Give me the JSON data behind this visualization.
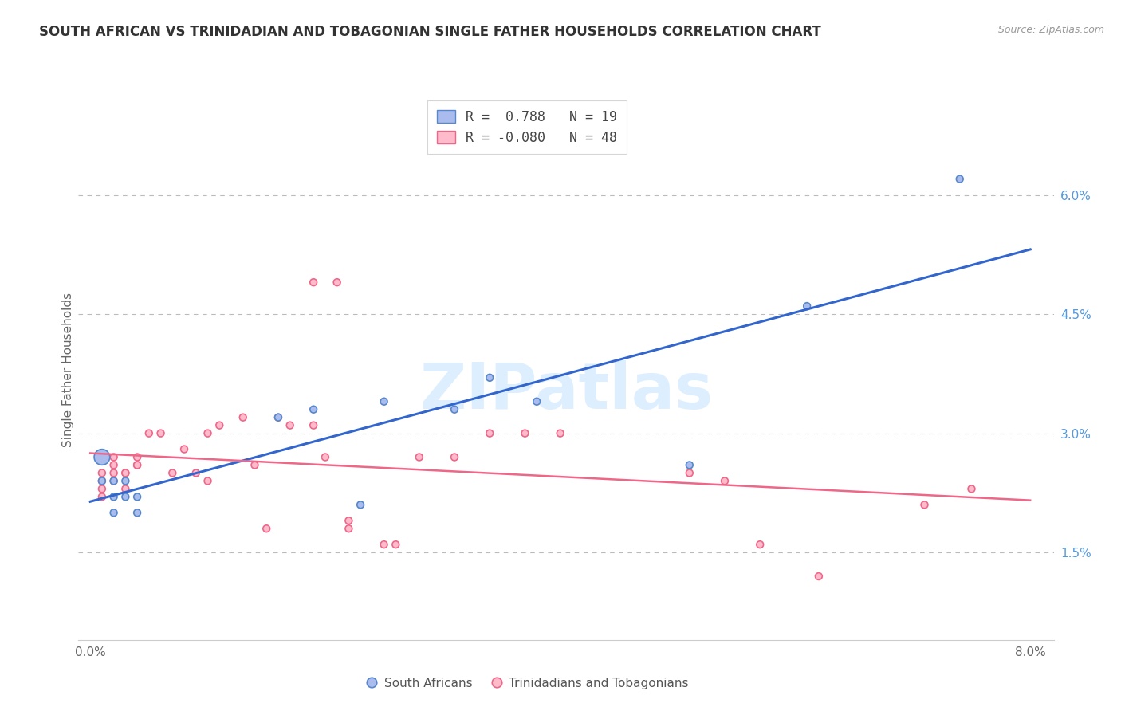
{
  "title": "SOUTH AFRICAN VS TRINIDADIAN AND TOBAGONIAN SINGLE FATHER HOUSEHOLDS CORRELATION CHART",
  "source": "Source: ZipAtlas.com",
  "ylabel": "Single Father Households",
  "x_ticks": [
    0.0,
    0.01,
    0.02,
    0.03,
    0.04,
    0.05,
    0.06,
    0.07,
    0.08
  ],
  "x_tick_labels": [
    "0.0%",
    "",
    "",
    "",
    "",
    "",
    "",
    "",
    "8.0%"
  ],
  "y_ticks": [
    0.015,
    0.03,
    0.045,
    0.06
  ],
  "y_tick_labels": [
    "1.5%",
    "3.0%",
    "4.5%",
    "6.0%"
  ],
  "xlim": [
    -0.001,
    0.082
  ],
  "ylim": [
    0.004,
    0.072
  ],
  "legend_blue_label": "R =  0.788   N = 19",
  "legend_pink_label": "R = -0.080   N = 48",
  "south_african_x": [
    0.001,
    0.001,
    0.002,
    0.002,
    0.002,
    0.003,
    0.003,
    0.004,
    0.004,
    0.016,
    0.019,
    0.023,
    0.025,
    0.031,
    0.034,
    0.038,
    0.051,
    0.061,
    0.074
  ],
  "south_african_y": [
    0.027,
    0.024,
    0.024,
    0.022,
    0.02,
    0.022,
    0.024,
    0.02,
    0.022,
    0.032,
    0.033,
    0.021,
    0.034,
    0.033,
    0.037,
    0.034,
    0.026,
    0.046,
    0.062
  ],
  "south_african_sizes": [
    200,
    40,
    40,
    40,
    40,
    40,
    40,
    40,
    40,
    40,
    40,
    40,
    40,
    40,
    40,
    40,
    40,
    40,
    40
  ],
  "trinidadian_x": [
    0.001,
    0.001,
    0.001,
    0.001,
    0.001,
    0.001,
    0.002,
    0.002,
    0.002,
    0.002,
    0.003,
    0.003,
    0.003,
    0.004,
    0.004,
    0.004,
    0.005,
    0.006,
    0.007,
    0.008,
    0.009,
    0.01,
    0.01,
    0.011,
    0.013,
    0.014,
    0.015,
    0.016,
    0.017,
    0.019,
    0.02,
    0.022,
    0.022,
    0.025,
    0.026,
    0.028,
    0.031,
    0.034,
    0.037,
    0.04,
    0.051,
    0.054,
    0.057,
    0.062,
    0.071,
    0.075,
    0.019,
    0.021
  ],
  "trinidadian_y": [
    0.027,
    0.027,
    0.025,
    0.024,
    0.023,
    0.022,
    0.027,
    0.026,
    0.025,
    0.024,
    0.025,
    0.025,
    0.023,
    0.027,
    0.026,
    0.026,
    0.03,
    0.03,
    0.025,
    0.028,
    0.025,
    0.03,
    0.024,
    0.031,
    0.032,
    0.026,
    0.018,
    0.032,
    0.031,
    0.031,
    0.027,
    0.019,
    0.018,
    0.016,
    0.016,
    0.027,
    0.027,
    0.03,
    0.03,
    0.03,
    0.025,
    0.024,
    0.016,
    0.012,
    0.021,
    0.023,
    0.049,
    0.049
  ],
  "trinidadian_sizes": [
    40,
    40,
    40,
    40,
    40,
    40,
    40,
    40,
    40,
    40,
    40,
    40,
    40,
    40,
    40,
    40,
    40,
    40,
    40,
    40,
    40,
    40,
    40,
    40,
    40,
    40,
    40,
    40,
    40,
    40,
    40,
    40,
    40,
    40,
    40,
    40,
    40,
    40,
    40,
    40,
    40,
    40,
    40,
    40,
    40,
    40,
    40,
    40
  ],
  "blue_color": "#5588cc",
  "blue_face": "#aabbee",
  "pink_color": "#ee6688",
  "pink_face": "#ffbbcc",
  "line_blue": "#3366cc",
  "line_pink": "#ee6688",
  "grid_color": "#bbbbbb",
  "background": "#ffffff",
  "title_color": "#333333",
  "source_color": "#999999",
  "tick_color_right": "#5599dd",
  "watermark_color": "#ddeeff",
  "bottom_legend_labels": [
    "South Africans",
    "Trinidadians and Tobagonians"
  ]
}
